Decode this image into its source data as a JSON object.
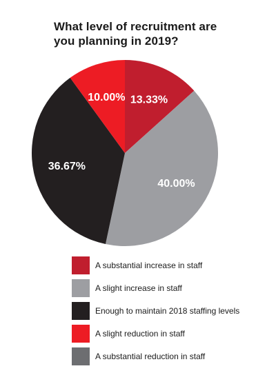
{
  "chart_data": {
    "type": "pie",
    "title": "What level of recruitment are you planning in 2019?",
    "slices": [
      {
        "label": "A substantial increase in staff",
        "value": 13.33,
        "value_label": "13.33%",
        "color": "#c01e2e"
      },
      {
        "label": "A slight increase in staff",
        "value": 40.0,
        "value_label": "40.00%",
        "color": "#9d9ea2"
      },
      {
        "label": "Enough to maintain 2018 staffing levels",
        "value": 36.67,
        "value_label": "36.67%",
        "color": "#231f20"
      },
      {
        "label": "A slight reduction in staff",
        "value": 10.0,
        "value_label": "10.00%",
        "color": "#ed1c24"
      },
      {
        "label": "A substantial reduction in staff",
        "value": 0,
        "value_label": "",
        "color": "#6d6e71"
      }
    ],
    "start_angle_deg": 0,
    "direction": "clockwise",
    "legend_position": "bottom"
  }
}
